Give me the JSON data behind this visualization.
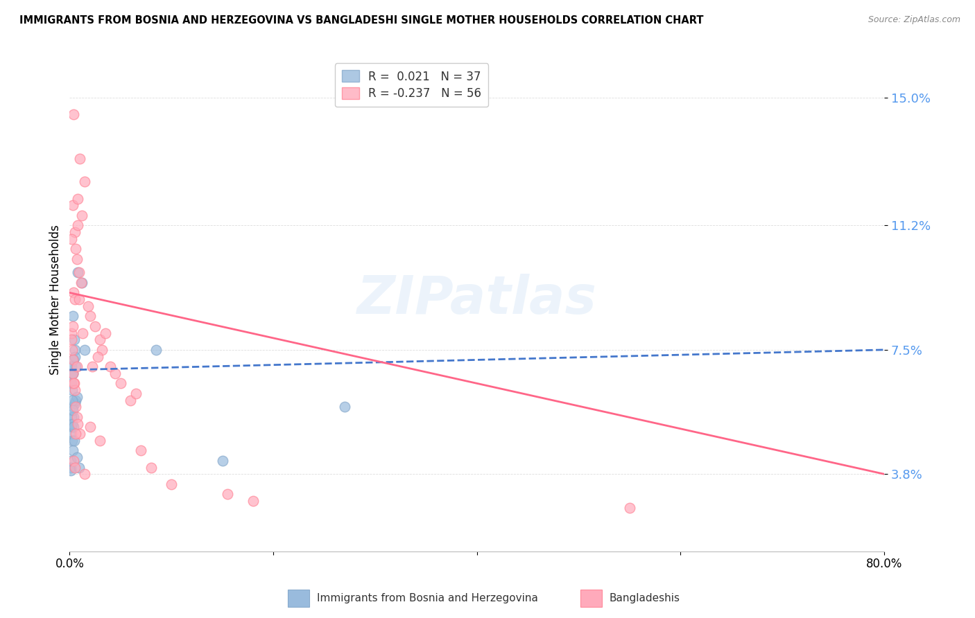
{
  "title": "IMMIGRANTS FROM BOSNIA AND HERZEGOVINA VS BANGLADESHI SINGLE MOTHER HOUSEHOLDS CORRELATION CHART",
  "source": "Source: ZipAtlas.com",
  "ylabel": "Single Mother Households",
  "yticks": [
    3.8,
    7.5,
    11.2,
    15.0
  ],
  "xmin": 0.0,
  "xmax": 80.0,
  "ymin": 1.5,
  "ymax": 16.5,
  "blue_color": "#99BBDD",
  "pink_color": "#FFAABB",
  "blue_edge_color": "#88AACC",
  "pink_edge_color": "#FF8899",
  "blue_line_color": "#4477CC",
  "pink_line_color": "#FF6688",
  "watermark": "ZIPatlas",
  "blue_points": [
    [
      0.5,
      7.5
    ],
    [
      0.8,
      9.8
    ],
    [
      1.2,
      9.5
    ],
    [
      0.3,
      6.8
    ],
    [
      0.4,
      7.2
    ],
    [
      0.2,
      7.0
    ],
    [
      0.15,
      6.5
    ],
    [
      0.25,
      6.3
    ],
    [
      0.3,
      5.8
    ],
    [
      0.4,
      5.5
    ],
    [
      0.5,
      5.9
    ],
    [
      0.6,
      6.0
    ],
    [
      0.7,
      6.1
    ],
    [
      0.35,
      6.8
    ],
    [
      0.45,
      7.8
    ],
    [
      0.55,
      7.3
    ],
    [
      1.5,
      7.5
    ],
    [
      0.2,
      5.2
    ],
    [
      0.15,
      5.0
    ],
    [
      0.25,
      4.8
    ],
    [
      0.3,
      4.5
    ],
    [
      0.1,
      4.2
    ],
    [
      0.12,
      4.0
    ],
    [
      0.08,
      3.9
    ],
    [
      0.18,
      5.5
    ],
    [
      0.22,
      5.3
    ],
    [
      0.28,
      6.0
    ],
    [
      0.32,
      5.7
    ],
    [
      0.38,
      5.2
    ],
    [
      0.42,
      4.8
    ],
    [
      8.5,
      7.5
    ],
    [
      0.3,
      8.5
    ],
    [
      0.6,
      7.0
    ],
    [
      15.0,
      4.2
    ],
    [
      0.7,
      4.3
    ],
    [
      0.9,
      4.0
    ],
    [
      27.0,
      5.8
    ]
  ],
  "pink_points": [
    [
      0.4,
      14.5
    ],
    [
      1.0,
      13.2
    ],
    [
      1.5,
      12.5
    ],
    [
      0.3,
      11.8
    ],
    [
      0.8,
      12.0
    ],
    [
      1.2,
      11.5
    ],
    [
      0.5,
      11.0
    ],
    [
      0.6,
      10.5
    ],
    [
      0.7,
      10.2
    ],
    [
      0.9,
      9.8
    ],
    [
      1.1,
      9.5
    ],
    [
      0.4,
      9.2
    ],
    [
      0.5,
      9.0
    ],
    [
      1.8,
      8.8
    ],
    [
      2.0,
      8.5
    ],
    [
      2.5,
      8.2
    ],
    [
      3.0,
      7.8
    ],
    [
      3.5,
      8.0
    ],
    [
      3.2,
      7.5
    ],
    [
      2.8,
      7.3
    ],
    [
      4.0,
      7.0
    ],
    [
      4.5,
      6.8
    ],
    [
      0.3,
      7.2
    ],
    [
      0.2,
      8.0
    ],
    [
      0.15,
      7.8
    ],
    [
      0.25,
      7.5
    ],
    [
      0.35,
      8.2
    ],
    [
      0.45,
      6.5
    ],
    [
      0.55,
      6.3
    ],
    [
      5.0,
      6.5
    ],
    [
      6.0,
      6.0
    ],
    [
      0.6,
      5.8
    ],
    [
      0.7,
      5.5
    ],
    [
      0.8,
      5.3
    ],
    [
      1.0,
      5.0
    ],
    [
      2.0,
      5.2
    ],
    [
      3.0,
      4.8
    ],
    [
      7.0,
      4.5
    ],
    [
      0.4,
      4.2
    ],
    [
      0.5,
      4.0
    ],
    [
      1.5,
      3.8
    ],
    [
      10.0,
      3.5
    ],
    [
      15.5,
      3.2
    ],
    [
      0.3,
      6.8
    ],
    [
      0.4,
      6.5
    ],
    [
      0.2,
      10.8
    ],
    [
      0.8,
      11.2
    ],
    [
      2.2,
      7.0
    ],
    [
      6.5,
      6.2
    ],
    [
      55.0,
      2.8
    ],
    [
      0.6,
      5.0
    ],
    [
      18.0,
      3.0
    ],
    [
      8.0,
      4.0
    ],
    [
      0.9,
      9.0
    ],
    [
      1.3,
      8.0
    ],
    [
      0.7,
      7.0
    ]
  ],
  "blue_trend": {
    "x_start": 0.0,
    "y_start": 6.9,
    "x_end": 80.0,
    "y_end": 7.5
  },
  "pink_trend": {
    "x_start": 0.0,
    "y_start": 9.2,
    "x_end": 80.0,
    "y_end": 3.8
  },
  "legend1_r": "0.021",
  "legend1_n": "37",
  "legend2_r": "-0.237",
  "legend2_n": "56",
  "bottom_label1": "Immigrants from Bosnia and Herzegovina",
  "bottom_label2": "Bangladeshis",
  "ytick_color": "#5599EE",
  "grid_color": "#DDDDDD"
}
